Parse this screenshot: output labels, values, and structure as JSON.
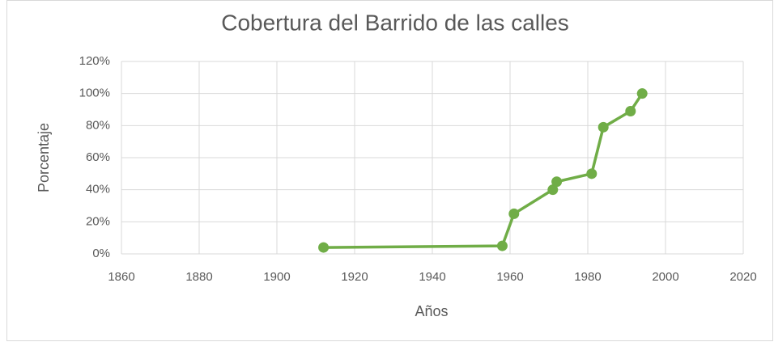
{
  "chart_data": {
    "type": "line",
    "title": "Cobertura del Barrido de las calles",
    "x_label": "Años",
    "y_label": "Porcentaje",
    "x": [
      1912,
      1958,
      1961,
      1971,
      1972,
      1981,
      1984,
      1991,
      1994
    ],
    "series": [
      {
        "name": "Cobertura",
        "color": "#70ad47",
        "values": [
          4,
          5,
          25,
          40,
          45,
          50,
          79,
          89,
          100
        ]
      }
    ],
    "xlim": [
      1860,
      2020
    ],
    "xticks": [
      1860,
      1880,
      1900,
      1920,
      1940,
      1960,
      1980,
      2000,
      2020
    ],
    "ylim": [
      0,
      120
    ],
    "yticks": [
      {
        "value": 0,
        "label": "0%"
      },
      {
        "value": 20,
        "label": "20%"
      },
      {
        "value": 40,
        "label": "40%"
      },
      {
        "value": 60,
        "label": "60%"
      },
      {
        "value": 80,
        "label": "80%"
      },
      {
        "value": 100,
        "label": "100%"
      },
      {
        "value": 120,
        "label": "120%"
      }
    ],
    "grid": true,
    "legend": false
  }
}
